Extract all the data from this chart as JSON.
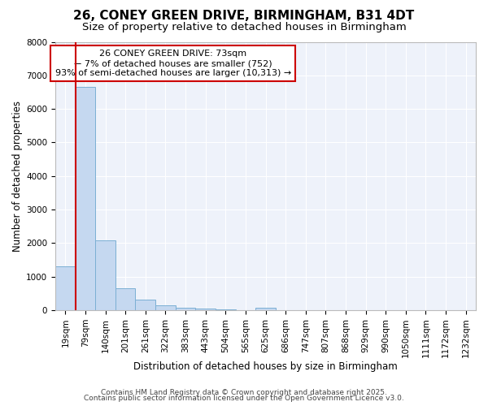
{
  "title": "26, CONEY GREEN DRIVE, BIRMINGHAM, B31 4DT",
  "subtitle": "Size of property relative to detached houses in Birmingham",
  "xlabel": "Distribution of detached houses by size in Birmingham",
  "ylabel": "Number of detached properties",
  "categories": [
    "19sqm",
    "79sqm",
    "140sqm",
    "201sqm",
    "261sqm",
    "322sqm",
    "383sqm",
    "443sqm",
    "504sqm",
    "565sqm",
    "625sqm",
    "686sqm",
    "747sqm",
    "807sqm",
    "868sqm",
    "929sqm",
    "990sqm",
    "1050sqm",
    "1111sqm",
    "1172sqm",
    "1232sqm"
  ],
  "values": [
    1300,
    6650,
    2080,
    640,
    300,
    130,
    80,
    35,
    10,
    5,
    70,
    0,
    0,
    0,
    0,
    0,
    0,
    0,
    0,
    0,
    0
  ],
  "bar_color": "#c5d8f0",
  "bar_edge_color": "#7bafd4",
  "highlight_color": "#cc0000",
  "annotation_box_color": "#cc0000",
  "annotation_line1": "26 CONEY GREEN DRIVE: 73sqm",
  "annotation_line2": "← 7% of detached houses are smaller (752)",
  "annotation_line3": "93% of semi-detached houses are larger (10,313) →",
  "ylim": [
    0,
    8000
  ],
  "yticks": [
    0,
    1000,
    2000,
    3000,
    4000,
    5000,
    6000,
    7000,
    8000
  ],
  "footnote_line1": "Contains HM Land Registry data © Crown copyright and database right 2025.",
  "footnote_line2": "Contains public sector information licensed under the Open Government Licence v3.0.",
  "fig_bg_color": "#ffffff",
  "plot_bg_color": "#eef2fa",
  "grid_color": "#ffffff",
  "title_fontsize": 11,
  "subtitle_fontsize": 9.5,
  "tick_fontsize": 7.5,
  "ylabel_fontsize": 8.5,
  "xlabel_fontsize": 8.5,
  "annotation_fontsize": 8,
  "footnote_fontsize": 6.5
}
